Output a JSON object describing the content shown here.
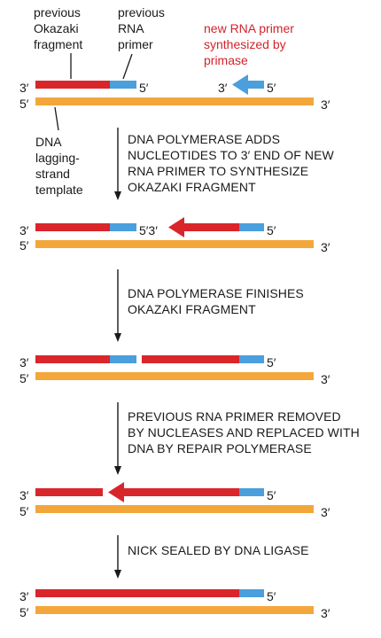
{
  "colors": {
    "dna_new": "#d9262b",
    "rna_primer": "#4a9fdc",
    "template": "#f3a73b",
    "text": "#1a1a1a",
    "red_text": "#d2232a"
  },
  "labels": {
    "previous_okazaki": [
      "previous",
      "Okazaki",
      "fragment"
    ],
    "previous_rna_primer": [
      "previous",
      "RNA",
      "primer"
    ],
    "new_rna_primer": [
      "new RNA primer",
      "synthesized by",
      "primase"
    ],
    "template_strand": [
      "DNA",
      "lagging-",
      "strand",
      "template"
    ]
  },
  "ends": {
    "three_prime": "3′",
    "five_prime": "5′",
    "five_three": "5′3′"
  },
  "steps": [
    [
      "DNA POLYMERASE ADDS",
      "NUCLEOTIDES TO 3′ END OF NEW",
      "RNA PRIMER TO SYNTHESIZE",
      "OKAZAKI FRAGMENT"
    ],
    [
      "DNA POLYMERASE FINISHES",
      "OKAZAKI FRAGMENT"
    ],
    [
      "PREVIOUS RNA PRIMER REMOVED",
      "BY NUCLEASES AND REPLACED WITH",
      "DNA BY REPAIR POLYMERASE"
    ],
    [
      "NICK SEALED BY DNA LIGASE"
    ]
  ]
}
